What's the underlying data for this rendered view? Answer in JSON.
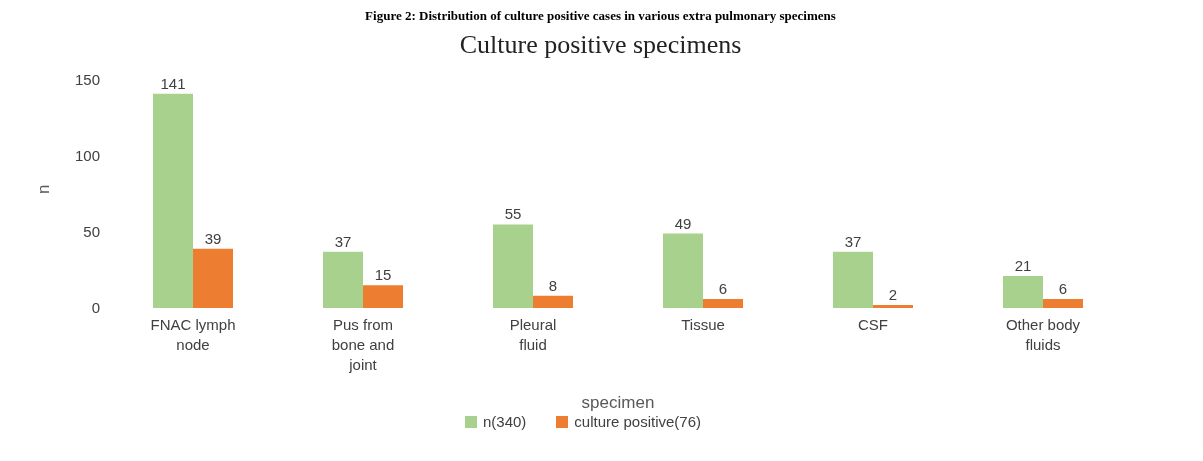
{
  "chart_data": {
    "type": "bar",
    "title": "Figure 2: Distribution of culture positive cases in various extra pulmonary specimens",
    "subtitle": "Culture positive specimens",
    "xlabel": "specimen",
    "ylabel": "n",
    "categories": [
      "FNAC lymph node",
      "Pus from bone and joint",
      "Pleural fluid",
      "Tissue",
      "CSF",
      "Other body fluids"
    ],
    "series": [
      {
        "name": "n(340)",
        "color": "#a9d18e",
        "values": [
          141,
          37,
          55,
          49,
          37,
          21
        ]
      },
      {
        "name": "culture positive(76)",
        "color": "#ed7d31",
        "values": [
          39,
          15,
          8,
          6,
          2,
          6
        ]
      }
    ],
    "ylim": [
      0,
      150
    ],
    "yticks": [
      0,
      50,
      100,
      150
    ],
    "legend": "bottom",
    "data_labels": true
  }
}
